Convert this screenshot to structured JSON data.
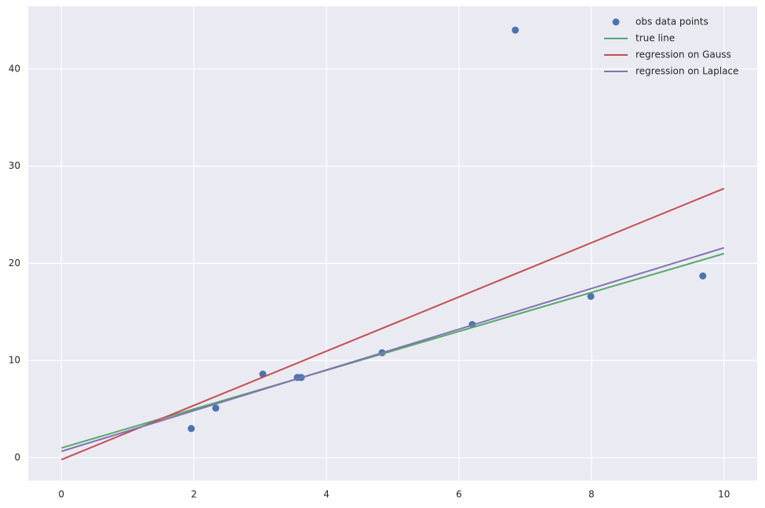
{
  "chart_data": {
    "type": "scatter",
    "xlim": [
      -0.5,
      10.5
    ],
    "ylim": [
      -2.35,
      46.45
    ],
    "xticks": [
      0,
      2,
      4,
      6,
      8,
      10
    ],
    "yticks": [
      0,
      10,
      20,
      30,
      40
    ],
    "grid": true,
    "legend": "upper right",
    "series": [
      {
        "name": "obs data points",
        "type": "scatter",
        "color": "#4c72b0",
        "x": [
          1.96,
          2.33,
          3.04,
          3.56,
          3.62,
          4.84,
          6.2,
          6.85,
          7.99,
          9.68
        ],
        "values": [
          3.0,
          5.1,
          8.6,
          8.25,
          8.25,
          10.8,
          13.7,
          44.0,
          16.6,
          18.7
        ]
      },
      {
        "name": "true line",
        "type": "line",
        "color": "#55a868",
        "x": [
          0,
          10
        ],
        "values": [
          1.0,
          21.0
        ]
      },
      {
        "name": "regression on Gauss",
        "type": "line",
        "color": "#c44e52",
        "x": [
          0,
          10
        ],
        "values": [
          -0.2,
          27.7
        ]
      },
      {
        "name": "regression on Laplace",
        "type": "line",
        "color": "#8172b2",
        "x": [
          0,
          10
        ],
        "values": [
          0.65,
          21.6
        ]
      }
    ]
  }
}
